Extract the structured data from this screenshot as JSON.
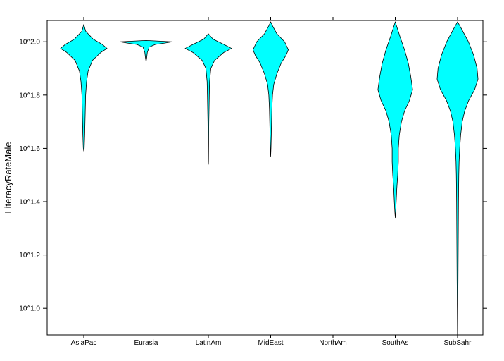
{
  "chart_data": {
    "type": "violin",
    "ylabel": "LiteracyRateMale",
    "xlabel": "",
    "title": "",
    "y_scale": "log10",
    "ylim_log10": [
      0.9,
      2.08
    ],
    "y_ticks": [
      {
        "value": 1.0,
        "label": "10^1.0"
      },
      {
        "value": 1.2,
        "label": "10^1.2"
      },
      {
        "value": 1.4,
        "label": "10^1.4"
      },
      {
        "value": 1.6,
        "label": "10^1.6"
      },
      {
        "value": 1.8,
        "label": "10^1.8"
      },
      {
        "value": 2.0,
        "label": "10^2.0"
      }
    ],
    "categories": [
      "AsiaPac",
      "Eurasia",
      "LatinAm",
      "MidEast",
      "NorthAm",
      "SouthAs",
      "SubSahr"
    ],
    "fill_color": "#00ffff",
    "stroke_color": "#000000",
    "violins": [
      {
        "category": "AsiaPac",
        "profile": [
          [
            2.065,
            0
          ],
          [
            2.04,
            0.06
          ],
          [
            2.01,
            0.3
          ],
          [
            1.99,
            0.6
          ],
          [
            1.975,
            0.75
          ],
          [
            1.96,
            0.55
          ],
          [
            1.93,
            0.28
          ],
          [
            1.89,
            0.14
          ],
          [
            1.85,
            0.09
          ],
          [
            1.8,
            0.06
          ],
          [
            1.75,
            0.05
          ],
          [
            1.7,
            0.04
          ],
          [
            1.65,
            0.03
          ],
          [
            1.6,
            0.015
          ],
          [
            1.59,
            0
          ]
        ]
      },
      {
        "category": "Eurasia",
        "profile": [
          [
            2.005,
            0
          ],
          [
            2.0,
            0.85
          ],
          [
            1.995,
            0.6
          ],
          [
            1.99,
            0.3
          ],
          [
            1.98,
            0.1
          ],
          [
            1.96,
            0.04
          ],
          [
            1.94,
            0.02
          ],
          [
            1.925,
            0
          ]
        ]
      },
      {
        "category": "LatinAm",
        "profile": [
          [
            2.03,
            0
          ],
          [
            2.01,
            0.15
          ],
          [
            1.99,
            0.5
          ],
          [
            1.975,
            0.75
          ],
          [
            1.96,
            0.5
          ],
          [
            1.93,
            0.2
          ],
          [
            1.9,
            0.08
          ],
          [
            1.85,
            0.04
          ],
          [
            1.8,
            0.03
          ],
          [
            1.7,
            0.015
          ],
          [
            1.6,
            0.008
          ],
          [
            1.55,
            0.004
          ],
          [
            1.54,
            0
          ]
        ]
      },
      {
        "category": "MidEast",
        "profile": [
          [
            2.075,
            0
          ],
          [
            2.06,
            0.06
          ],
          [
            2.03,
            0.2
          ],
          [
            2.0,
            0.45
          ],
          [
            1.97,
            0.57
          ],
          [
            1.95,
            0.5
          ],
          [
            1.92,
            0.34
          ],
          [
            1.88,
            0.2
          ],
          [
            1.84,
            0.1
          ],
          [
            1.8,
            0.06
          ],
          [
            1.75,
            0.04
          ],
          [
            1.7,
            0.03
          ],
          [
            1.65,
            0.02
          ],
          [
            1.6,
            0.01
          ],
          [
            1.57,
            0
          ]
        ]
      },
      {
        "category": "NorthAm",
        "profile": []
      },
      {
        "category": "SouthAs",
        "profile": [
          [
            2.075,
            0
          ],
          [
            2.06,
            0.04
          ],
          [
            2.02,
            0.15
          ],
          [
            1.97,
            0.3
          ],
          [
            1.92,
            0.42
          ],
          [
            1.87,
            0.5
          ],
          [
            1.82,
            0.56
          ],
          [
            1.78,
            0.46
          ],
          [
            1.74,
            0.3
          ],
          [
            1.7,
            0.2
          ],
          [
            1.65,
            0.13
          ],
          [
            1.6,
            0.1
          ],
          [
            1.55,
            0.1
          ],
          [
            1.5,
            0.08
          ],
          [
            1.45,
            0.05
          ],
          [
            1.4,
            0.03
          ],
          [
            1.36,
            0.012
          ],
          [
            1.34,
            0
          ]
        ]
      },
      {
        "category": "SubSahr",
        "profile": [
          [
            2.075,
            0
          ],
          [
            2.05,
            0.12
          ],
          [
            2.0,
            0.35
          ],
          [
            1.95,
            0.52
          ],
          [
            1.9,
            0.63
          ],
          [
            1.86,
            0.66
          ],
          [
            1.82,
            0.55
          ],
          [
            1.78,
            0.36
          ],
          [
            1.74,
            0.23
          ],
          [
            1.7,
            0.15
          ],
          [
            1.65,
            0.1
          ],
          [
            1.6,
            0.07
          ],
          [
            1.55,
            0.05
          ],
          [
            1.5,
            0.04
          ],
          [
            1.4,
            0.03
          ],
          [
            1.3,
            0.025
          ],
          [
            1.2,
            0.02
          ],
          [
            1.1,
            0.015
          ],
          [
            1.0,
            0.008
          ],
          [
            0.9,
            0.002
          ]
        ]
      }
    ]
  }
}
